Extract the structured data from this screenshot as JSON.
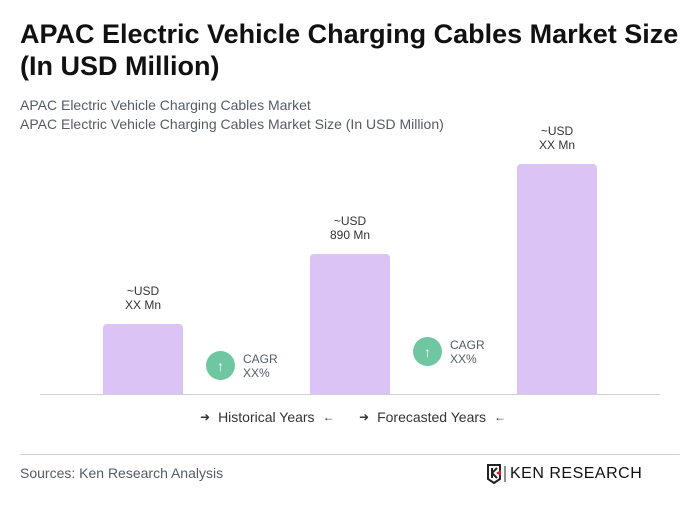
{
  "title": "APAC Electric Vehicle Charging Cables Market Size (In USD Million)",
  "subtitle1": "APAC Electric Vehicle Charging Cables Market",
  "subtitle2": "APAC Electric Vehicle Charging Cables Market Size (In USD Million)",
  "chart_data": {
    "type": "bar",
    "title": "APAC Electric Vehicle Charging Cables Market Size (In USD Million)",
    "categories": [
      "",
      "",
      ""
    ],
    "values": [
      445,
      890,
      1460
    ],
    "data_labels": [
      {
        "line1": "~USD",
        "line2": "XX Mn"
      },
      {
        "line1": "~USD",
        "line2": "890 Mn"
      },
      {
        "line1": "~USD",
        "line2": "XX Mn"
      }
    ],
    "cagr": [
      {
        "label": "CAGR",
        "value": "XX%"
      },
      {
        "label": "CAGR",
        "value": "XX%"
      }
    ],
    "bar_color": "#dcc3f6",
    "cagr_color": "#6fc7a2",
    "grid": false,
    "legend": {
      "historical": "Historical Years",
      "forecasted": "Forecasted Years",
      "placement": "bottom"
    }
  },
  "source": "Sources: Ken Research Analysis",
  "logo_text": "KEN RESEARCH"
}
